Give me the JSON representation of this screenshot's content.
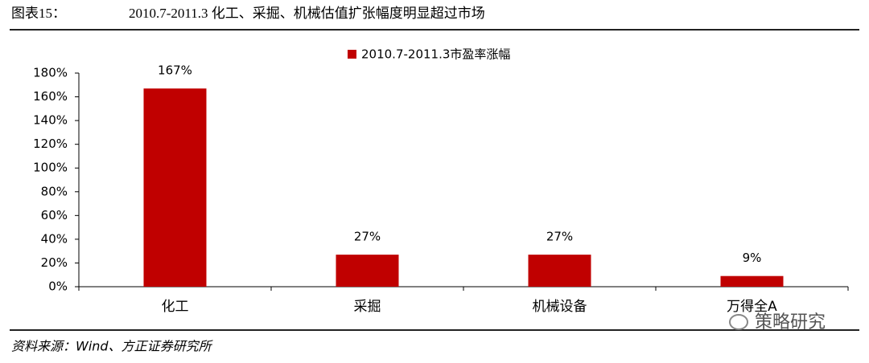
{
  "chart_data": {
    "type": "bar",
    "label": "图表15：",
    "title": "2010.7-2011.3 化工、采掘、机械估值扩张幅度明显超过市场",
    "categories": [
      "化工",
      "采掘",
      "机械设备",
      "万得全A"
    ],
    "series": [
      {
        "name": "2010.7-2011.3市盈率涨幅",
        "color": "#c00000",
        "values": [
          167,
          27,
          27,
          9
        ],
        "value_labels": [
          "167%",
          "27%",
          "27%",
          "9%"
        ]
      }
    ],
    "ylim": [
      0,
      180
    ],
    "yticks": [
      {
        "value": 0,
        "label": "0%"
      },
      {
        "value": 20,
        "label": "20%"
      },
      {
        "value": 40,
        "label": "40%"
      },
      {
        "value": 60,
        "label": "60%"
      },
      {
        "value": 80,
        "label": "80%"
      },
      {
        "value": 100,
        "label": "100%"
      },
      {
        "value": 120,
        "label": "120%"
      },
      {
        "value": 140,
        "label": "140%"
      },
      {
        "value": 160,
        "label": "160%"
      },
      {
        "value": 180,
        "label": "180%"
      }
    ],
    "legend": "top",
    "source": "资料来源：Wind、方正证券研究所",
    "watermark": "策略研究"
  }
}
